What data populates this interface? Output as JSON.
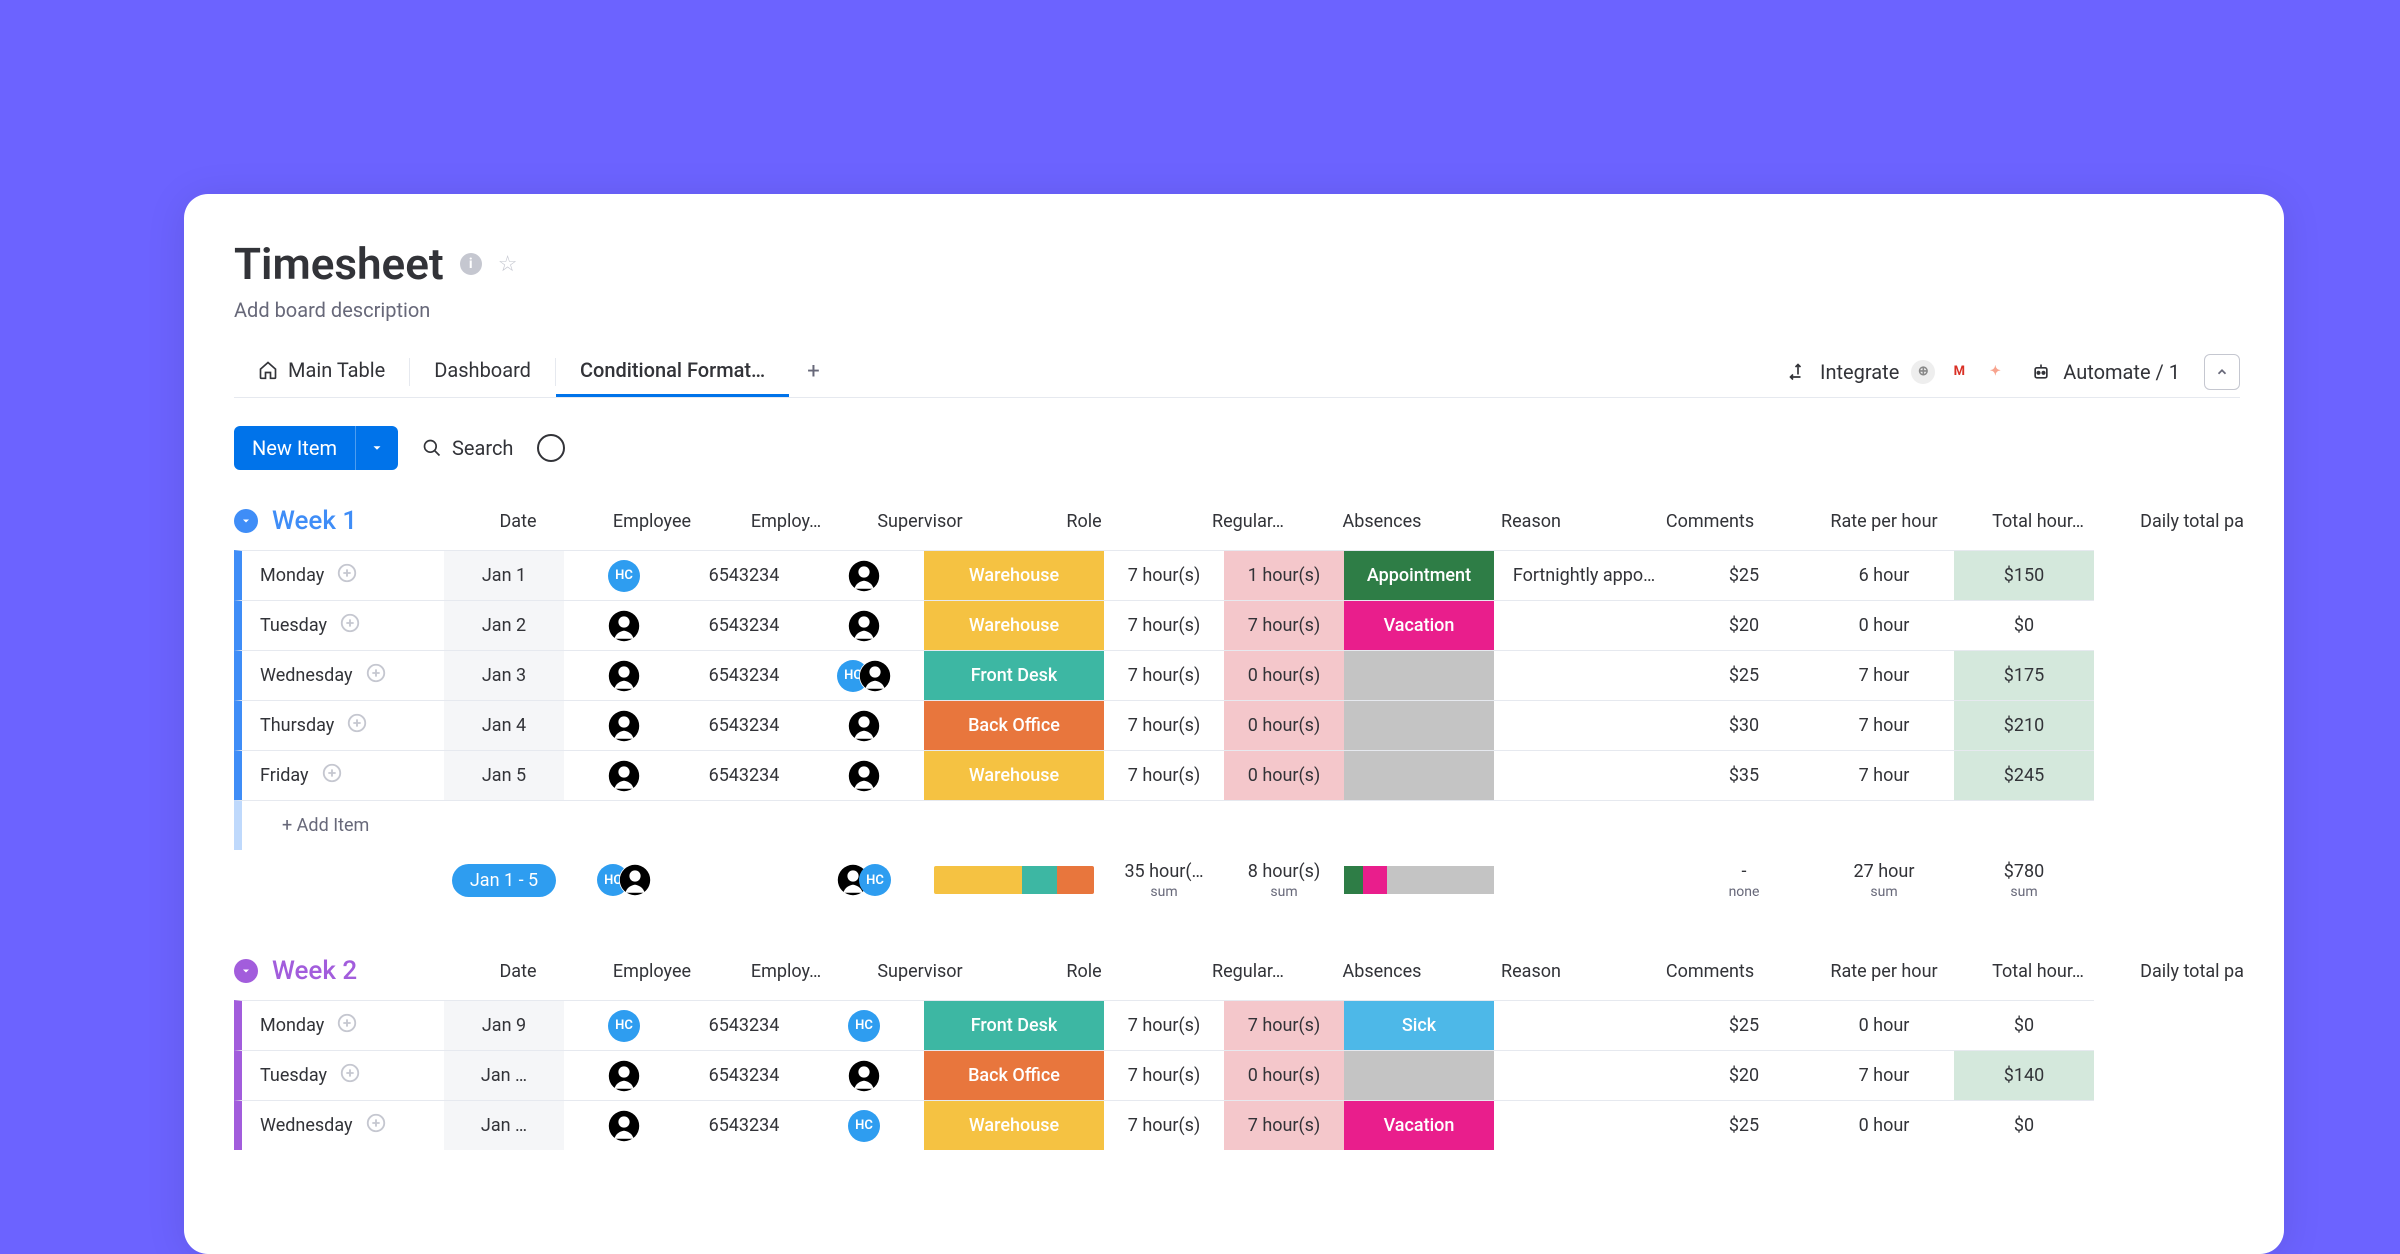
{
  "header": {
    "title": "Timesheet",
    "description": "Add board description"
  },
  "tabs": {
    "items": [
      {
        "label": "Main Table",
        "icon": "home"
      },
      {
        "label": "Dashboard",
        "icon": null
      },
      {
        "label": "Conditional Format…",
        "icon": null
      }
    ],
    "activeIndex": 2
  },
  "actions": {
    "integrate": "Integrate",
    "automate": "Automate / 1"
  },
  "toolbar": {
    "newItem": "New Item",
    "search": "Search"
  },
  "columns": [
    "Date",
    "Employee",
    "Employ…",
    "Supervisor",
    "Role",
    "Regular…",
    "Absences",
    "Reason",
    "Comments",
    "Rate per hour",
    "Total hour…",
    "Daily total pa"
  ],
  "roleColors": {
    "Warehouse": "#f5c242",
    "Front Desk": "#3db7a3",
    "Back Office": "#e8763d"
  },
  "reasonColors": {
    "Appointment": "#2e7d46",
    "Vacation": "#e91e8c",
    "Sick": "#4db8e8"
  },
  "groups": [
    {
      "title": "Week 1",
      "color": "#3f8df7",
      "rows": [
        {
          "day": "Monday",
          "date": "Jan 1",
          "employee": "hc",
          "employeeId": "6543234",
          "supervisor": "person",
          "role": "Warehouse",
          "regular": "7 hour(s)",
          "absences": "1 hour(s)",
          "absencesBg": "pink",
          "reason": "Appointment",
          "comments": "Fortnightly appo…",
          "rate": "$25",
          "totalHours": "6 hour",
          "dailyTotal": "$150",
          "dailyBg": "green"
        },
        {
          "day": "Tuesday",
          "date": "Jan 2",
          "employee": "person",
          "employeeId": "6543234",
          "supervisor": "person",
          "role": "Warehouse",
          "regular": "7 hour(s)",
          "absences": "7 hour(s)",
          "absencesBg": "pink",
          "reason": "Vacation",
          "comments": "",
          "rate": "$20",
          "totalHours": "0 hour",
          "dailyTotal": "$0",
          "dailyBg": "plain"
        },
        {
          "day": "Wednesday",
          "date": "Jan 3",
          "employee": "person",
          "employeeId": "6543234",
          "supervisor": "pair",
          "role": "Front Desk",
          "regular": "7 hour(s)",
          "absences": "0 hour(s)",
          "absencesBg": "pink",
          "reason": "",
          "comments": "",
          "rate": "$25",
          "totalHours": "7 hour",
          "dailyTotal": "$175",
          "dailyBg": "green"
        },
        {
          "day": "Thursday",
          "date": "Jan 4",
          "employee": "person",
          "employeeId": "6543234",
          "supervisor": "person",
          "role": "Back Office",
          "regular": "7 hour(s)",
          "absences": "0 hour(s)",
          "absencesBg": "pink",
          "reason": "",
          "comments": "",
          "rate": "$30",
          "totalHours": "7 hour",
          "dailyTotal": "$210",
          "dailyBg": "green"
        },
        {
          "day": "Friday",
          "date": "Jan 5",
          "employee": "person",
          "employeeId": "6543234",
          "supervisor": "person",
          "role": "Warehouse",
          "regular": "7 hour(s)",
          "absences": "0 hour(s)",
          "absencesBg": "pink",
          "reason": "",
          "comments": "",
          "rate": "$35",
          "totalHours": "7 hour",
          "dailyTotal": "$245",
          "dailyBg": "green"
        }
      ],
      "addLabel": "+ Add Item",
      "summary": {
        "dateRange": "Jan 1 - 5",
        "regular": "35 hour(…",
        "absences": "8 hour(s)",
        "rateNone": "-",
        "rateNoneLabel": "none",
        "totalHours": "27 hour",
        "dailyTotal": "$780",
        "sumLabel": "sum",
        "roleBar": [
          {
            "color": "#f5c242",
            "pct": 55
          },
          {
            "color": "#3db7a3",
            "pct": 22
          },
          {
            "color": "#e8763d",
            "pct": 23
          }
        ],
        "reasonBar": [
          {
            "color": "#2e7d46",
            "pct": 15
          },
          {
            "color": "#e91e8c",
            "pct": 15
          },
          {
            "color": "#c4c4c4",
            "pct": 70
          }
        ]
      }
    },
    {
      "title": "Week 2",
      "color": "#a25ddc",
      "rows": [
        {
          "day": "Monday",
          "date": "Jan 9",
          "employee": "hc",
          "employeeId": "6543234",
          "supervisor": "hc",
          "role": "Front Desk",
          "regular": "7 hour(s)",
          "absences": "7 hour(s)",
          "absencesBg": "pink",
          "reason": "Sick",
          "comments": "",
          "rate": "$25",
          "totalHours": "0 hour",
          "dailyTotal": "$0",
          "dailyBg": "plain"
        },
        {
          "day": "Tuesday",
          "date": "Jan …",
          "employee": "person",
          "employeeId": "6543234",
          "supervisor": "person",
          "role": "Back Office",
          "regular": "7 hour(s)",
          "absences": "0 hour(s)",
          "absencesBg": "pink",
          "reason": "",
          "comments": "",
          "rate": "$20",
          "totalHours": "7 hour",
          "dailyTotal": "$140",
          "dailyBg": "green"
        },
        {
          "day": "Wednesday",
          "date": "Jan …",
          "employee": "person",
          "employeeId": "6543234",
          "supervisor": "hc",
          "role": "Warehouse",
          "regular": "7 hour(s)",
          "absences": "7 hour(s)",
          "absencesBg": "pink",
          "reason": "Vacation",
          "comments": "",
          "rate": "$25",
          "totalHours": "0 hour",
          "dailyTotal": "$0",
          "dailyBg": "plain"
        }
      ]
    }
  ]
}
